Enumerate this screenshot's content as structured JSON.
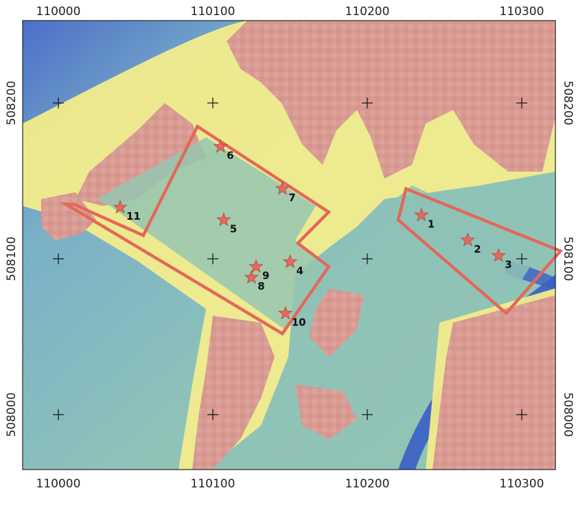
{
  "map": {
    "colors": {
      "background_teal": "#8fc3b8",
      "water_blue": "#3a63c7",
      "built_pink": "#d99a93",
      "edge_yellow": "#f2ec8c",
      "site_outline": "#e2685a",
      "star_fill": "#e36a5d",
      "grid_cross": "#111111"
    },
    "x_ticks": [
      {
        "value": 110000,
        "label": "110000"
      },
      {
        "value": 110100,
        "label": "110100"
      },
      {
        "value": 110200,
        "label": "110200"
      },
      {
        "value": 110300,
        "label": "110300"
      }
    ],
    "y_ticks": [
      {
        "value": 508200,
        "label": "508200"
      },
      {
        "value": 508100,
        "label": "508100"
      },
      {
        "value": 508000,
        "label": "508000"
      }
    ],
    "sites": [
      {
        "id": "left-site",
        "vertices": [
          [
            110010,
            508135
          ],
          [
            110055,
            508115
          ],
          [
            110090,
            508185
          ],
          [
            110175,
            508130
          ],
          [
            110155,
            508110
          ],
          [
            110175,
            508095
          ],
          [
            110145,
            508052
          ],
          [
            110005,
            508135
          ]
        ]
      },
      {
        "id": "right-site",
        "vertices": [
          [
            110225,
            508145
          ],
          [
            110325,
            508105
          ],
          [
            110290,
            508065
          ],
          [
            110220,
            508125
          ]
        ]
      }
    ],
    "points": [
      {
        "label": "1",
        "x": 110235,
        "y": 508128
      },
      {
        "label": "2",
        "x": 110265,
        "y": 508112
      },
      {
        "label": "3",
        "x": 110285,
        "y": 508102
      },
      {
        "label": "4",
        "x": 110150,
        "y": 508098
      },
      {
        "label": "5",
        "x": 110107,
        "y": 508125
      },
      {
        "label": "6",
        "x": 110105,
        "y": 508172
      },
      {
        "label": "7",
        "x": 110145,
        "y": 508145
      },
      {
        "label": "8",
        "x": 110125,
        "y": 508088
      },
      {
        "label": "9",
        "x": 110128,
        "y": 508095
      },
      {
        "label": "10",
        "x": 110147,
        "y": 508065
      },
      {
        "label": "11",
        "x": 110040,
        "y": 508133
      }
    ]
  }
}
